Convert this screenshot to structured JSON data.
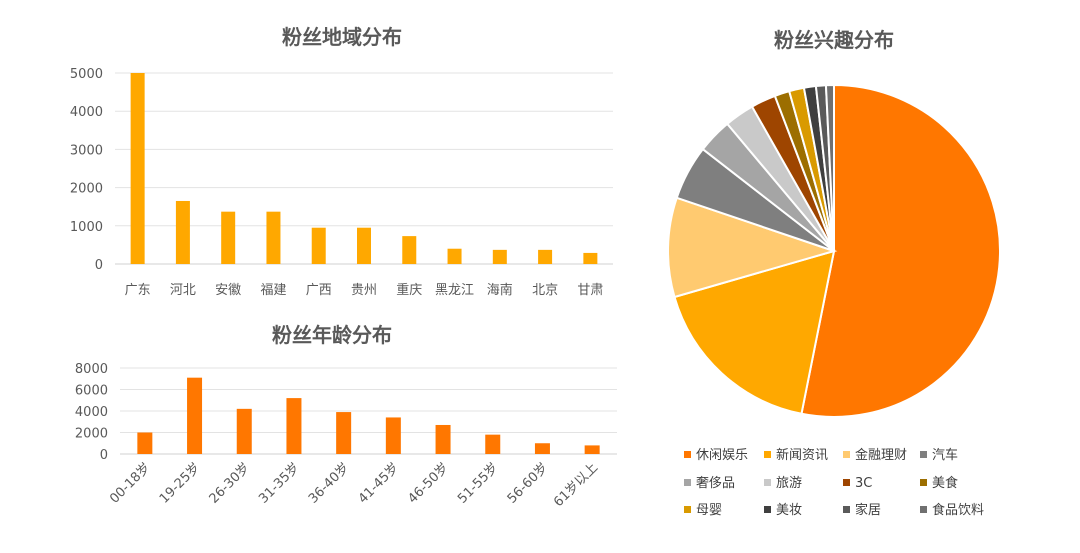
{
  "chart_data": [
    {
      "type": "bar",
      "title": "粉丝地域分布",
      "categories": [
        "广东",
        "河北",
        "安徽",
        "福建",
        "广西",
        "贵州",
        "重庆",
        "黑龙江",
        "海南",
        "北京",
        "甘肃"
      ],
      "values": [
        5000,
        1650,
        1370,
        1370,
        950,
        950,
        730,
        400,
        370,
        370,
        290
      ],
      "ylim": [
        0,
        5000
      ],
      "yticks": [
        "0",
        "1000",
        "2000",
        "3000",
        "4000",
        "5000"
      ],
      "color": "#FFA800",
      "grid": true
    },
    {
      "type": "bar",
      "title": "粉丝年龄分布",
      "categories": [
        "00-18岁",
        "19-25岁",
        "26-30岁",
        "31-35岁",
        "36-40岁",
        "41-45岁",
        "46-50岁",
        "51-55岁",
        "56-60岁",
        "61岁以上"
      ],
      "values": [
        2000,
        7100,
        4200,
        5200,
        3900,
        3400,
        2700,
        1800,
        1000,
        800
      ],
      "ylim": [
        0,
        8000
      ],
      "yticks": [
        "0",
        "2000",
        "4000",
        "6000",
        "8000"
      ],
      "color": "#FF7700",
      "grid": true
    },
    {
      "type": "pie",
      "title": "粉丝兴趣分布",
      "legend_position": "bottom",
      "slices": [
        {
          "name": "休闲娱乐",
          "value": 55.0,
          "color": "#FF7700"
        },
        {
          "name": "新闻资讯",
          "value": 18.0,
          "color": "#FFA800"
        },
        {
          "name": "金融理财",
          "value": 10.0,
          "color": "#FFCA70"
        },
        {
          "name": "汽车",
          "value": 5.5,
          "color": "#7F7F7F"
        },
        {
          "name": "奢侈品",
          "value": 3.5,
          "color": "#A5A5A5"
        },
        {
          "name": "旅游",
          "value": 3.0,
          "color": "#C9C9C9"
        },
        {
          "name": "3C",
          "value": 2.5,
          "color": "#9E4500"
        },
        {
          "name": "美食",
          "value": 1.5,
          "color": "#9C6E00"
        },
        {
          "name": "母婴",
          "value": 1.5,
          "color": "#D99A00"
        },
        {
          "name": "美妆",
          "value": 1.2,
          "color": "#3F3F3F"
        },
        {
          "name": "家居",
          "value": 1.0,
          "color": "#5A5A5A"
        },
        {
          "name": "食品饮料",
          "value": 0.8,
          "color": "#707070"
        }
      ]
    }
  ]
}
